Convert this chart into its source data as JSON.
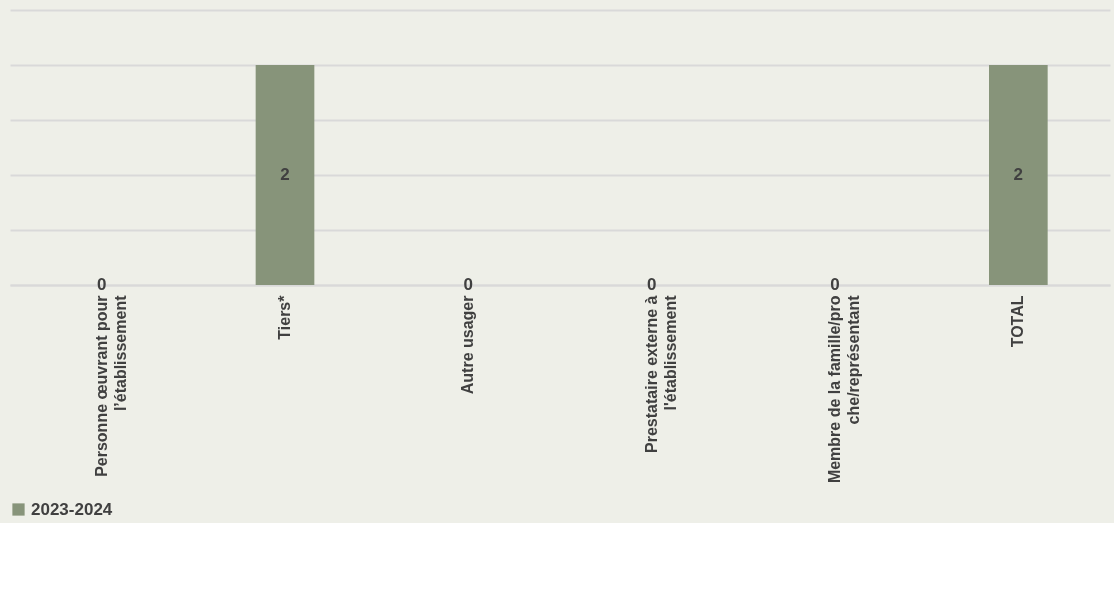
{
  "chart_data": {
    "type": "bar",
    "categories": [
      "Personne œuvrant pour l’établissement",
      "Tiers*",
      "Autre usager",
      "Prestataire externe à l'établissement",
      "Membre de la famille/proche/représentant",
      "TOTAL"
    ],
    "series": [
      {
        "name": "2023-2024",
        "color": "#87947a",
        "values": [
          0,
          2,
          0,
          0,
          0,
          2
        ]
      }
    ],
    "ylim": [
      0,
      2.5
    ],
    "yticks": [
      0,
      0.5,
      1,
      1.5,
      2,
      2.5
    ],
    "grid": "y",
    "legend": "bottom",
    "tick_labels": "x",
    "data_labels": true
  }
}
